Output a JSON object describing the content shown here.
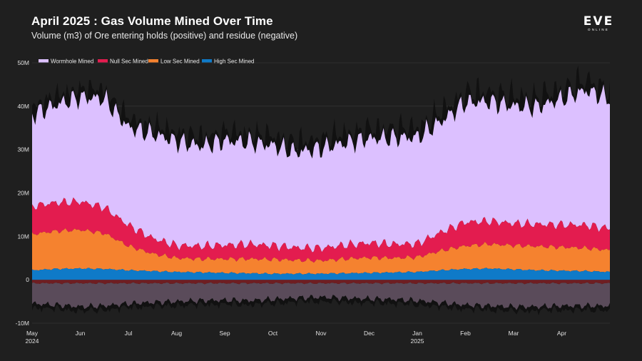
{
  "header": {
    "title": "April 2025 : Gas Volume Mined Over Time",
    "subtitle": "Volume (m3) of Ore entering holds (positive) and residue (negative)"
  },
  "logo": {
    "main": "EVE",
    "sub": "ONLINE"
  },
  "colors": {
    "background": "#1f1f1f",
    "wormhole": "#dcc0ff",
    "nullsec": "#e31c4f",
    "lowsec": "#f5822f",
    "highsec": "#0f7ac8",
    "total_envelope": "#111111",
    "residue_main": "#5a4b5a",
    "residue_dark": "#6e1e22"
  },
  "chart_data": {
    "type": "area",
    "stacked": true,
    "ylim": [
      -10000000,
      50000000
    ],
    "ytick_values": [
      -10000000,
      0,
      10000000,
      20000000,
      30000000,
      40000000,
      50000000
    ],
    "ytick_labels": [
      "-10M",
      "0",
      "10M",
      "20M",
      "30M",
      "40M",
      "50M"
    ],
    "x_range": [
      "2024-05-01",
      "2025-04-30"
    ],
    "xticks": [
      {
        "label": "May",
        "sub": "2024",
        "month": 0
      },
      {
        "label": "Jun",
        "sub": "",
        "month": 1
      },
      {
        "label": "Jul",
        "sub": "",
        "month": 2
      },
      {
        "label": "Aug",
        "sub": "",
        "month": 3
      },
      {
        "label": "Sep",
        "sub": "",
        "month": 4
      },
      {
        "label": "Oct",
        "sub": "",
        "month": 5
      },
      {
        "label": "Nov",
        "sub": "",
        "month": 6
      },
      {
        "label": "Dec",
        "sub": "",
        "month": 7
      },
      {
        "label": "Jan",
        "sub": "2025",
        "month": 8
      },
      {
        "label": "Feb",
        "sub": "",
        "month": 9
      },
      {
        "label": "Mar",
        "sub": "",
        "month": 10
      },
      {
        "label": "Apr",
        "sub": "",
        "month": 11
      }
    ],
    "legend": [
      "Wormhole Mined",
      "Null Sec Mined",
      "Low Sec Mined",
      "High Sec Mined"
    ],
    "x_months": [
      0,
      0.5,
      1,
      1.5,
      2,
      2.5,
      3,
      3.5,
      4,
      4.5,
      5,
      5.5,
      6,
      6.5,
      7,
      7.5,
      8,
      8.5,
      9,
      9.5,
      10,
      10.5,
      11,
      11.5,
      12
    ],
    "series": [
      {
        "name": "High Sec Mined",
        "key": "highsec",
        "values": [
          2.2,
          2.5,
          2.6,
          2.5,
          2.2,
          2.0,
          1.8,
          1.7,
          1.6,
          1.5,
          1.4,
          1.4,
          1.4,
          1.5,
          1.6,
          1.7,
          1.8,
          2.2,
          2.5,
          2.6,
          2.4,
          2.2,
          2.1,
          2.0,
          1.8
        ]
      },
      {
        "name": "Low Sec Mined",
        "key": "lowsec",
        "values": [
          8.3,
          8.7,
          8.9,
          8.2,
          5.6,
          4.0,
          3.2,
          3.1,
          3.2,
          3.3,
          3.3,
          3.1,
          3.0,
          3.3,
          3.5,
          3.3,
          3.4,
          4.5,
          5.3,
          5.6,
          5.5,
          5.5,
          5.4,
          5.3,
          5.0
        ]
      },
      {
        "name": "Null Sec Mined",
        "key": "nullsec",
        "values": [
          6.5,
          6.6,
          6.5,
          6.0,
          4.8,
          3.6,
          2.9,
          3.0,
          3.2,
          3.4,
          3.2,
          2.9,
          2.9,
          3.2,
          3.4,
          3.2,
          3.1,
          4.3,
          5.5,
          5.3,
          5.1,
          5.1,
          5.2,
          5.3,
          5.0
        ]
      },
      {
        "name": "Wormhole Mined",
        "key": "wormhole",
        "values": [
          21.0,
          22.5,
          24.0,
          25.0,
          22.5,
          24.0,
          24.0,
          23.0,
          24.0,
          23.5,
          23.0,
          22.0,
          23.0,
          23.5,
          24.0,
          24.5,
          24.5,
          25.5,
          27.5,
          27.5,
          27.0,
          27.0,
          29.0,
          31.0,
          30.0
        ]
      },
      {
        "name": "Residue",
        "key": "residue",
        "values": [
          -5.5,
          -5.8,
          -6.2,
          -6.0,
          -5.5,
          -5.2,
          -5.0,
          -4.8,
          -4.7,
          -4.8,
          -4.5,
          -4.2,
          -4.0,
          -4.2,
          -4.4,
          -4.5,
          -4.8,
          -5.3,
          -5.8,
          -6.0,
          -6.2,
          -6.2,
          -6.0,
          -6.0,
          -6.0
        ]
      }
    ],
    "value_units": "millions m3"
  }
}
